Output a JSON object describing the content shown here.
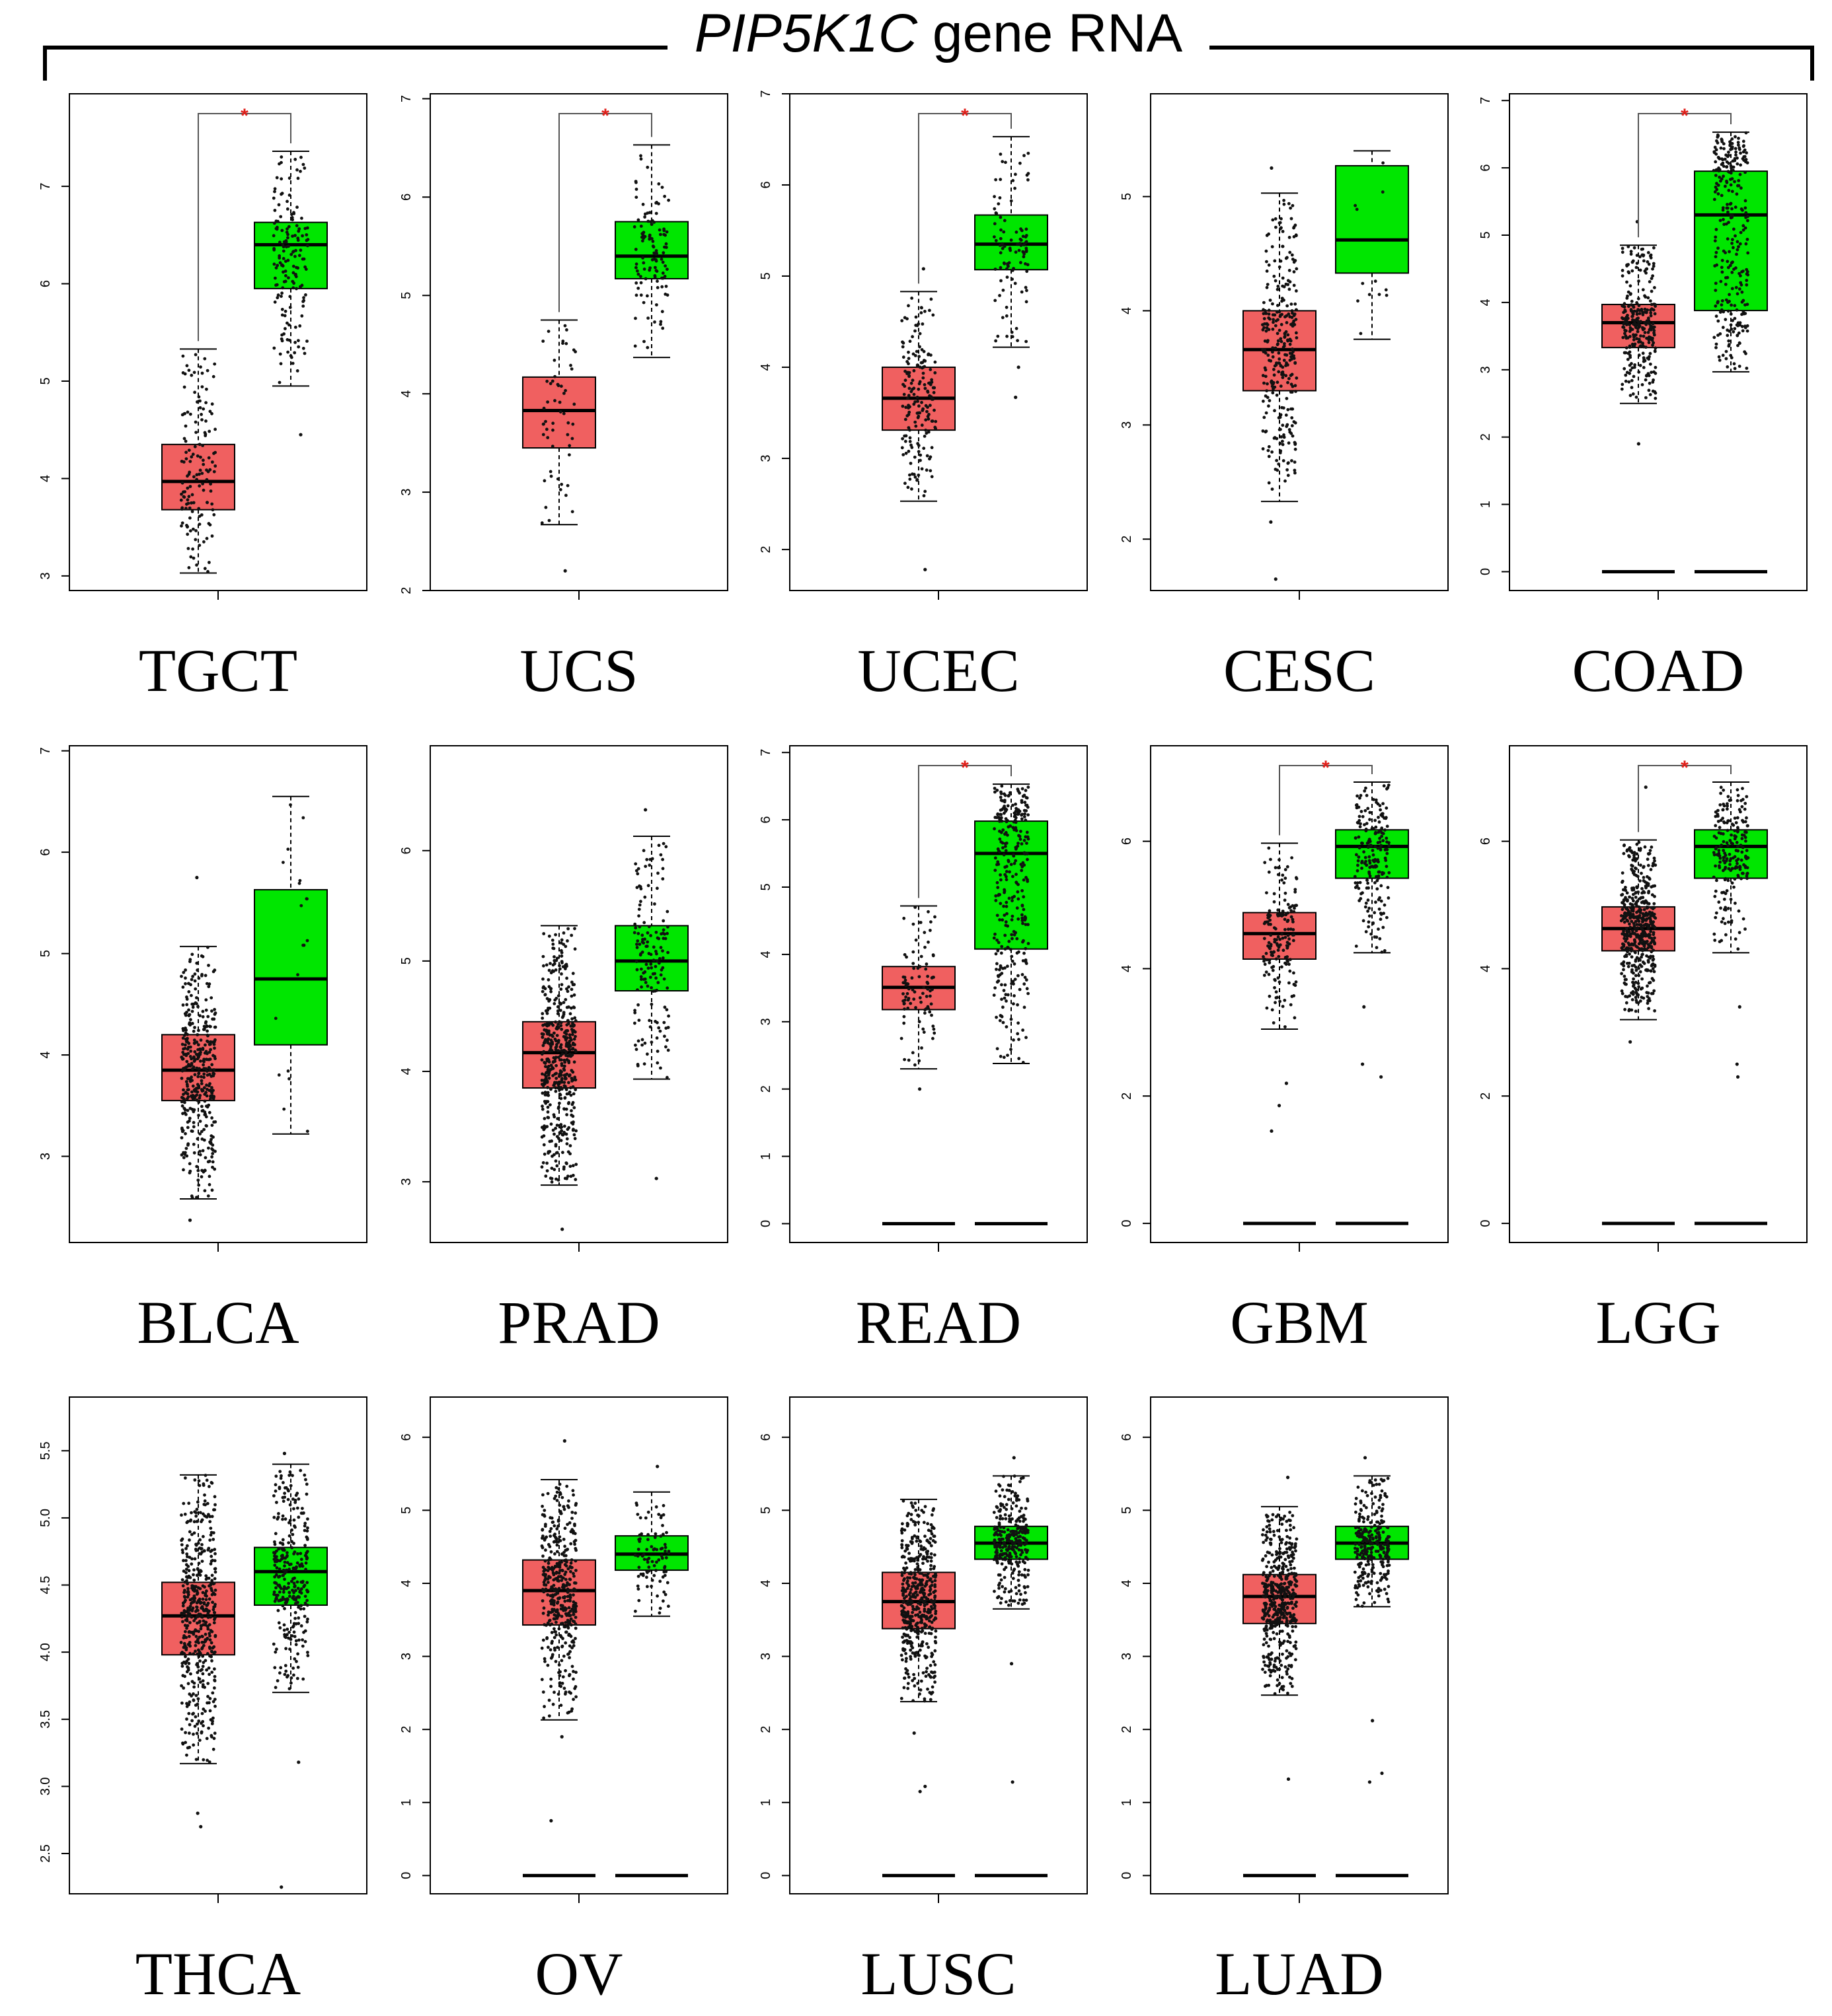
{
  "header": {
    "gene": "PIP5K1C",
    "suffix": " gene RNA"
  },
  "colors": {
    "tumor": "#F06060",
    "normal": "#00E600",
    "significance": "#E0201B"
  },
  "chart_data": [
    {
      "type": "box",
      "title": "TGCT",
      "yticks": [
        3,
        4,
        5,
        6,
        7
      ],
      "ylim": [
        2.85,
        7.95
      ],
      "significant": true,
      "has_zero_line": false,
      "n_points": [
        140,
        160
      ],
      "boxes": [
        {
          "min": 3.03,
          "q1": 3.68,
          "median": 3.97,
          "q3": 4.35,
          "max": 5.33,
          "outliers": []
        },
        {
          "min": 4.95,
          "q1": 5.95,
          "median": 6.4,
          "q3": 6.63,
          "max": 7.36,
          "outliers": [
            4.45
          ]
        }
      ]
    },
    {
      "type": "box",
      "title": "UCS",
      "yticks": [
        2,
        3,
        4,
        5,
        6,
        7
      ],
      "ylim": [
        2.0,
        7.05
      ],
      "significant": true,
      "has_zero_line": false,
      "n_points": [
        55,
        110
      ],
      "boxes": [
        {
          "min": 2.67,
          "q1": 3.45,
          "median": 3.83,
          "q3": 4.17,
          "max": 4.75,
          "outliers": [
            2.2
          ]
        },
        {
          "min": 4.37,
          "q1": 5.17,
          "median": 5.4,
          "q3": 5.75,
          "max": 6.53,
          "outliers": []
        }
      ]
    },
    {
      "type": "box",
      "title": "UCEC",
      "yticks": [
        2,
        3,
        4,
        5,
        6,
        7
      ],
      "ylim": [
        1.55,
        7.0
      ],
      "significant": true,
      "has_zero_line": false,
      "n_points": [
        180,
        100
      ],
      "boxes": [
        {
          "min": 2.53,
          "q1": 3.31,
          "median": 3.66,
          "q3": 4.0,
          "max": 4.83,
          "outliers": [
            1.78,
            5.08
          ]
        },
        {
          "min": 4.22,
          "q1": 5.07,
          "median": 5.35,
          "q3": 5.67,
          "max": 6.53,
          "outliers": [
            3.67,
            4.0
          ]
        }
      ]
    },
    {
      "type": "box",
      "title": "CESC",
      "yticks": [
        2,
        3,
        4,
        5
      ],
      "ylim": [
        1.55,
        5.9
      ],
      "significant": false,
      "has_zero_line": false,
      "n_points": [
        300,
        12
      ],
      "boxes": [
        {
          "min": 2.33,
          "q1": 3.3,
          "median": 3.66,
          "q3": 4.0,
          "max": 5.03,
          "outliers": [
            1.65,
            2.15,
            5.25
          ]
        },
        {
          "min": 3.75,
          "q1": 4.33,
          "median": 4.62,
          "q3": 5.27,
          "max": 5.4,
          "outliers": []
        }
      ]
    },
    {
      "type": "box",
      "title": "COAD",
      "yticks": [
        0,
        1,
        2,
        3,
        4,
        5,
        6,
        7
      ],
      "ylim": [
        -0.28,
        7.1
      ],
      "significant": true,
      "has_zero_line": true,
      "n_points": [
        280,
        280
      ],
      "boxes": [
        {
          "min": 2.5,
          "q1": 3.33,
          "median": 3.7,
          "q3": 3.97,
          "max": 4.85,
          "outliers": [
            1.9,
            5.2
          ]
        },
        {
          "min": 2.97,
          "q1": 3.88,
          "median": 5.3,
          "q3": 5.95,
          "max": 6.53,
          "outliers": []
        }
      ]
    },
    {
      "type": "box",
      "title": "BLCA",
      "yticks": [
        3,
        4,
        5,
        6,
        7
      ],
      "ylim": [
        2.15,
        7.05
      ],
      "significant": false,
      "has_zero_line": false,
      "n_points": [
        400,
        19
      ],
      "boxes": [
        {
          "min": 2.58,
          "q1": 3.55,
          "median": 3.85,
          "q3": 4.2,
          "max": 5.07,
          "outliers": [
            2.37,
            5.75
          ]
        },
        {
          "min": 3.22,
          "q1": 4.1,
          "median": 4.75,
          "q3": 5.63,
          "max": 6.55,
          "outliers": []
        }
      ]
    },
    {
      "type": "box",
      "title": "PRAD",
      "yticks": [
        3,
        4,
        5,
        6
      ],
      "ylim": [
        2.45,
        6.95
      ],
      "significant": false,
      "has_zero_line": false,
      "n_points": [
        490,
        150
      ],
      "boxes": [
        {
          "min": 2.97,
          "q1": 3.85,
          "median": 4.17,
          "q3": 4.45,
          "max": 5.32,
          "outliers": [
            2.57
          ]
        },
        {
          "min": 3.93,
          "q1": 4.73,
          "median": 5.0,
          "q3": 5.32,
          "max": 6.13,
          "outliers": [
            3.03,
            6.37
          ]
        }
      ]
    },
    {
      "type": "box",
      "title": "READ",
      "yticks": [
        0,
        1,
        2,
        3,
        4,
        5,
        6,
        7
      ],
      "ylim": [
        -0.28,
        7.1
      ],
      "significant": true,
      "has_zero_line": true,
      "n_points": [
        90,
        310
      ],
      "boxes": [
        {
          "min": 2.3,
          "q1": 3.18,
          "median": 3.51,
          "q3": 3.82,
          "max": 4.72,
          "outliers": [
            2.0
          ]
        },
        {
          "min": 2.38,
          "q1": 4.08,
          "median": 5.5,
          "q3": 5.98,
          "max": 6.53,
          "outliers": []
        }
      ]
    },
    {
      "type": "box",
      "title": "GBM",
      "yticks": [
        0,
        2,
        4,
        6
      ],
      "ylim": [
        -0.3,
        7.5
      ],
      "significant": true,
      "has_zero_line": true,
      "n_points": [
        160,
        200
      ],
      "boxes": [
        {
          "min": 3.05,
          "q1": 4.15,
          "median": 4.55,
          "q3": 4.88,
          "max": 5.97,
          "outliers": [
            1.45,
            1.85,
            2.2
          ]
        },
        {
          "min": 4.25,
          "q1": 5.42,
          "median": 5.92,
          "q3": 6.18,
          "max": 6.93,
          "outliers": [
            2.3,
            2.5,
            3.4
          ]
        }
      ]
    },
    {
      "type": "box",
      "title": "LGG",
      "yticks": [
        0,
        2,
        4,
        6
      ],
      "ylim": [
        -0.3,
        7.5
      ],
      "significant": true,
      "has_zero_line": true,
      "n_points": [
        500,
        200
      ],
      "boxes": [
        {
          "min": 3.2,
          "q1": 4.28,
          "median": 4.63,
          "q3": 4.97,
          "max": 6.02,
          "outliers": [
            2.85,
            6.85
          ]
        },
        {
          "min": 4.25,
          "q1": 5.42,
          "median": 5.92,
          "q3": 6.18,
          "max": 6.93,
          "outliers": [
            2.3,
            2.5,
            3.4
          ]
        }
      ]
    },
    {
      "type": "box",
      "title": "THCA",
      "yticks": [
        "2.5",
        "3.0",
        "3.5",
        "4.0",
        "4.5",
        "5.0",
        "5.5"
      ],
      "ylim": [
        2.2,
        5.9
      ],
      "significant": false,
      "has_zero_line": false,
      "n_points": [
        500,
        300
      ],
      "boxes": [
        {
          "min": 3.17,
          "q1": 3.98,
          "median": 4.27,
          "q3": 4.52,
          "max": 5.32,
          "outliers": [
            2.7,
            2.8
          ]
        },
        {
          "min": 3.7,
          "q1": 4.35,
          "median": 4.6,
          "q3": 4.78,
          "max": 5.4,
          "outliers": [
            2.25,
            3.18,
            5.48
          ]
        }
      ]
    },
    {
      "type": "box",
      "title": "OV",
      "yticks": [
        0,
        1,
        2,
        3,
        4,
        5,
        6
      ],
      "ylim": [
        -0.25,
        6.55
      ],
      "significant": false,
      "has_zero_line": true,
      "n_points": [
        420,
        88
      ],
      "boxes": [
        {
          "min": 2.13,
          "q1": 3.43,
          "median": 3.9,
          "q3": 4.32,
          "max": 5.42,
          "outliers": [
            0.75,
            1.9,
            5.95
          ]
        },
        {
          "min": 3.55,
          "q1": 4.18,
          "median": 4.4,
          "q3": 4.65,
          "max": 5.25,
          "outliers": [
            5.6
          ]
        }
      ]
    },
    {
      "type": "box",
      "title": "LUSC",
      "yticks": [
        0,
        1,
        2,
        3,
        4,
        5,
        6
      ],
      "ylim": [
        -0.25,
        6.55
      ],
      "significant": false,
      "has_zero_line": true,
      "n_points": [
        480,
        290
      ],
      "boxes": [
        {
          "min": 2.38,
          "q1": 3.38,
          "median": 3.75,
          "q3": 4.15,
          "max": 5.15,
          "outliers": [
            1.15,
            1.22,
            1.95
          ]
        },
        {
          "min": 3.65,
          "q1": 4.33,
          "median": 4.55,
          "q3": 4.78,
          "max": 5.47,
          "outliers": [
            1.28,
            2.9,
            5.72
          ]
        }
      ]
    },
    {
      "type": "box",
      "title": "LUAD",
      "yticks": [
        0,
        1,
        2,
        3,
        4,
        5,
        6
      ],
      "ylim": [
        -0.25,
        6.55
      ],
      "significant": false,
      "has_zero_line": true,
      "n_points": [
        480,
        290
      ],
      "boxes": [
        {
          "min": 2.47,
          "q1": 3.45,
          "median": 3.82,
          "q3": 4.12,
          "max": 5.05,
          "outliers": [
            1.32,
            5.45
          ]
        },
        {
          "min": 3.68,
          "q1": 4.33,
          "median": 4.55,
          "q3": 4.78,
          "max": 5.47,
          "outliers": [
            1.28,
            1.4,
            2.12,
            5.72
          ]
        }
      ]
    }
  ]
}
